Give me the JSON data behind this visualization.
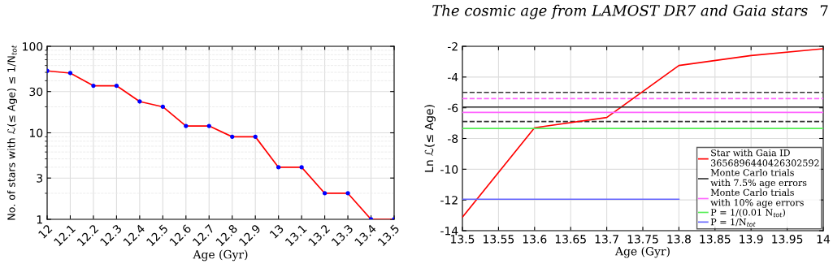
{
  "chart_data": [
    {
      "type": "line",
      "xlabel": "Age (Gyr)",
      "ylabel": "No. of stars with ℒ(≤ Age) ≤ 1/N$_{tot}$",
      "log": "y",
      "grid": true,
      "x": [
        12,
        12.1,
        12.2,
        12.3,
        12.4,
        12.5,
        12.6,
        12.7,
        12.8,
        12.9,
        13,
        13.1,
        13.2,
        13.3,
        13.4,
        13.5
      ],
      "xlim": [
        12,
        13.5
      ],
      "xticks": [
        12,
        12.1,
        12.2,
        12.3,
        12.4,
        12.5,
        12.6,
        12.7,
        12.8,
        12.9,
        13,
        13.1,
        13.2,
        13.3,
        13.4,
        13.5
      ],
      "ylim": [
        1,
        100
      ],
      "yticks": [
        1,
        3,
        10,
        30,
        100
      ],
      "series": [
        {
          "color": "#ff0000",
          "values": [
            52,
            49,
            35,
            35,
            23,
            20,
            12,
            12,
            9,
            9,
            4,
            4,
            2,
            2,
            1,
            1
          ]
        },
        {
          "type": "scatter",
          "color": "#0000ff",
          "values": [
            52,
            49,
            35,
            35,
            23,
            20,
            12,
            12,
            9,
            9,
            4,
            4,
            2,
            2,
            1,
            1
          ]
        }
      ]
    },
    {
      "type": "line",
      "xlabel": "Age (Gyr)",
      "ylabel": "Ln ℒ(≤ Age)",
      "grid": true,
      "legend": "bottom right",
      "annotations": [
        "The cosmic age from LAMOST DR7 and Gaia stars",
        "7"
      ],
      "x": [
        13.5,
        13.6,
        13.7,
        13.8,
        13.9,
        14
      ],
      "xlim": [
        13.5,
        14
      ],
      "xticks": [
        13.5,
        13.55,
        13.6,
        13.65,
        13.7,
        13.75,
        13.8,
        13.85,
        13.9,
        13.95,
        14
      ],
      "ylim": [
        -14,
        -2
      ],
      "yticks": [
        -14,
        -12,
        -10,
        -8,
        -6,
        -4,
        -2
      ],
      "series": [
        {
          "name": "Star with Gaia ID\n3656896440426302592",
          "color": "#ff0000",
          "values": [
            -13.12,
            -7.3,
            -6.63,
            -3.25,
            -2.6,
            -2.16
          ]
        },
        {
          "name": "Monte Carlo trials\nwith 7.5% age errors",
          "color": "#333333",
          "values": [
            -5.95,
            -5.95,
            -5.95,
            -5.95,
            -5.95,
            -5.95
          ]
        },
        {
          "name": "Monte Carlo trials\nwith 10% age errors",
          "color": "#ff66ff",
          "values": [
            -6.3,
            -6.3,
            -6.3,
            -6.3,
            -6.3,
            -6.3
          ]
        },
        {
          "name": "P = 1/(0.01 N$_{tot}$)",
          "color": "#55ee55",
          "values": [
            -7.35,
            -7.35,
            -7.35,
            -7.35,
            -7.35,
            -7.35
          ]
        },
        {
          "name": "P = 1/N$_{tot}$",
          "color": "#6666ff",
          "values": [
            -11.95,
            -11.95,
            -11.95,
            -11.95,
            null,
            null
          ]
        }
      ],
      "ref_lines": [
        {
          "axis": "y",
          "value": -5.0,
          "color": "#333333",
          "line_style": "dashed"
        },
        {
          "axis": "y",
          "value": -5.4,
          "color": "#ff66ff",
          "line_style": "dashed"
        },
        {
          "axis": "y",
          "value": -6.9,
          "color": "#333333",
          "line_style": "dashed"
        }
      ]
    }
  ]
}
